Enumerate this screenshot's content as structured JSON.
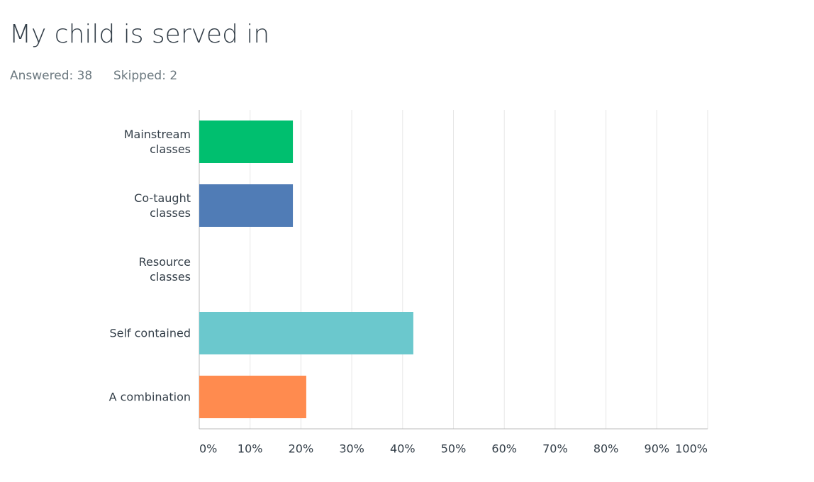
{
  "chart_data": {
    "type": "bar",
    "orientation": "horizontal",
    "title": "My child is served in",
    "annotations": [
      "Answered: 38",
      "Skipped: 2"
    ],
    "categories": [
      "Mainstream classes",
      "Co-taught classes",
      "Resource classes",
      "Self contained",
      "A combination"
    ],
    "values": [
      18.42,
      18.42,
      0,
      42.11,
      21.05
    ],
    "colors": [
      "#00bf6f",
      "#507cb6",
      "#f9be00",
      "#6bc8cd",
      "#ff8b4f"
    ],
    "xlim": [
      0,
      100
    ],
    "xticks": [
      {
        "value": 0,
        "label": "0%"
      },
      {
        "value": 10,
        "label": "10%"
      },
      {
        "value": 20,
        "label": "20%"
      },
      {
        "value": 30,
        "label": "30%"
      },
      {
        "value": 40,
        "label": "40%"
      },
      {
        "value": 50,
        "label": "50%"
      },
      {
        "value": 60,
        "label": "60%"
      },
      {
        "value": 70,
        "label": "70%"
      },
      {
        "value": 80,
        "label": "80%"
      },
      {
        "value": 90,
        "label": "90%"
      },
      {
        "value": 100,
        "label": "100%"
      }
    ],
    "grid": true
  }
}
